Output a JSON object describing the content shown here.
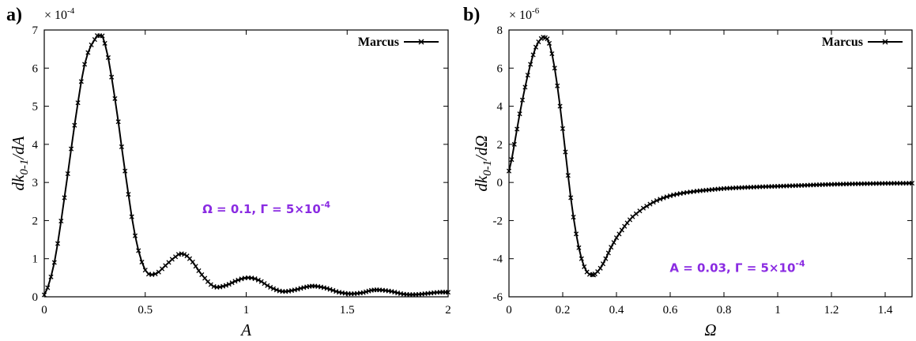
{
  "chart_data": [
    {
      "type": "line",
      "panel_label": "a)",
      "multiplier": "× 10",
      "multiplier_exp": "-4",
      "xlabel": "A",
      "ylabel_main": "dk",
      "ylabel_sub": "0-1",
      "ylabel_tail": "/dA",
      "xlim": [
        0,
        2
      ],
      "ylim": [
        0,
        7
      ],
      "xticks": [
        0,
        0.5,
        1,
        1.5,
        2
      ],
      "yticks": [
        0,
        1,
        2,
        3,
        4,
        5,
        6,
        7
      ],
      "xtick_labels": [
        "0",
        "0.5",
        "1",
        "1.5",
        "2"
      ],
      "ytick_labels": [
        "0",
        "1",
        "2",
        "3",
        "4",
        "5",
        "6",
        "7"
      ],
      "legend_position": "top-right",
      "series": [
        {
          "name": "Marcus",
          "color": "#000000",
          "marker": "x",
          "x": [
            0,
            0.05,
            0.1,
            0.15,
            0.2,
            0.25,
            0.275,
            0.3,
            0.35,
            0.4,
            0.45,
            0.5,
            0.55,
            0.6,
            0.65,
            0.68,
            0.72,
            0.78,
            0.84,
            0.9,
            0.96,
            1.01,
            1.06,
            1.12,
            1.18,
            1.24,
            1.3,
            1.34,
            1.4,
            1.46,
            1.52,
            1.58,
            1.62,
            1.66,
            1.72,
            1.78,
            1.84,
            1.9,
            1.96,
            2.0
          ],
          "y": [
            0.05,
            0.9,
            2.6,
            4.5,
            6.1,
            6.75,
            6.85,
            6.65,
            5.2,
            3.3,
            1.6,
            0.7,
            0.6,
            0.82,
            1.05,
            1.13,
            1.0,
            0.58,
            0.27,
            0.3,
            0.44,
            0.5,
            0.44,
            0.25,
            0.14,
            0.18,
            0.26,
            0.28,
            0.22,
            0.12,
            0.08,
            0.11,
            0.17,
            0.18,
            0.14,
            0.07,
            0.06,
            0.09,
            0.12,
            0.12
          ]
        }
      ],
      "annotation": {
        "main": "Ω = 0.1, Γ = 5×10",
        "exp": "-4",
        "x": 1.1,
        "y": 2.2
      }
    },
    {
      "type": "line",
      "panel_label": "b)",
      "multiplier": "× 10",
      "multiplier_exp": "-6",
      "xlabel": "Ω",
      "ylabel_main": "dk",
      "ylabel_sub": "0-1",
      "ylabel_tail": "/dΩ",
      "xlim": [
        0,
        1.5
      ],
      "ylim": [
        -6,
        8
      ],
      "xticks": [
        0,
        0.2,
        0.4,
        0.6,
        0.8,
        1,
        1.2,
        1.4
      ],
      "yticks": [
        -6,
        -4,
        -2,
        0,
        2,
        4,
        6,
        8
      ],
      "xtick_labels": [
        "0",
        "0.2",
        "0.4",
        "0.6",
        "0.8",
        "1",
        "1.2",
        "1.4"
      ],
      "ytick_labels": [
        "-6",
        "-4",
        "-2",
        "0",
        "2",
        "4",
        "6",
        "8"
      ],
      "legend_position": "top-right",
      "series": [
        {
          "name": "Marcus",
          "color": "#000000",
          "marker": "x",
          "x": [
            0,
            0.02,
            0.04,
            0.06,
            0.08,
            0.1,
            0.12,
            0.135,
            0.15,
            0.17,
            0.19,
            0.21,
            0.23,
            0.25,
            0.27,
            0.29,
            0.31,
            0.32,
            0.34,
            0.36,
            0.38,
            0.4,
            0.43,
            0.46,
            0.5,
            0.55,
            0.6,
            0.65,
            0.7,
            0.8,
            0.9,
            1.0,
            1.1,
            1.2,
            1.3,
            1.4,
            1.5
          ],
          "y": [
            0.6,
            2.0,
            3.6,
            5.0,
            6.2,
            7.1,
            7.55,
            7.6,
            7.3,
            6.0,
            4.0,
            1.6,
            -0.8,
            -2.7,
            -4.0,
            -4.7,
            -4.85,
            -4.8,
            -4.5,
            -4.0,
            -3.4,
            -2.9,
            -2.3,
            -1.8,
            -1.35,
            -0.95,
            -0.7,
            -0.55,
            -0.45,
            -0.32,
            -0.25,
            -0.2,
            -0.15,
            -0.1,
            -0.07,
            -0.05,
            -0.04
          ]
        }
      ],
      "annotation": {
        "main": "A = 0.03, Γ = 5×10",
        "exp": "-4",
        "x": 0.85,
        "y": -4.7
      }
    }
  ]
}
